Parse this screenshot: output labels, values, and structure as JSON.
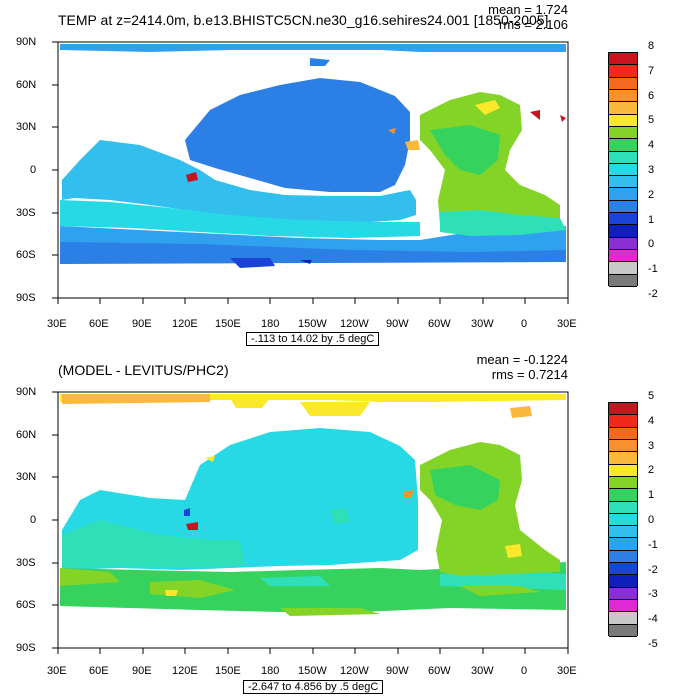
{
  "panels": [
    {
      "title": "TEMP at z=2414.0m, b.e13.BHISTC5CN.ne30_g16.sehires24.001 [1850-2005]",
      "mean_text": "mean = 1.724",
      "rms_text": "rms = 2.106",
      "range_text": "-.113 to 14.02 by .5 degC",
      "colorbar_labels": [
        "8",
        "7",
        "6",
        "5",
        "4",
        "3",
        "2",
        "1",
        "0",
        "-1",
        "-2"
      ],
      "colorbar_colors": [
        "#c8141e",
        "#ef2a1a",
        "#f36a1f",
        "#f89030",
        "#fab83d",
        "#fbe82b",
        "#84d428",
        "#35d35d",
        "#2fdfb7",
        "#27d9e4",
        "#32bfee",
        "#2fa1ef",
        "#2c7fe4",
        "#1c43d8",
        "#0f1fbe",
        "#8a2fd2",
        "#df29d6",
        "#c8c8c8",
        "#7a7a7a"
      ]
    },
    {
      "title": "(MODEL - LEVITUS/PHC2)",
      "mean_text": "mean = -0.1224",
      "rms_text": "rms = 0.7214",
      "range_text": "-2.647 to 4.856 by .5 degC",
      "colorbar_labels": [
        "5",
        "4",
        "3",
        "2",
        "1",
        "0",
        "-1",
        "-2",
        "-3",
        "-4",
        "-5"
      ],
      "colorbar_colors": [
        "#c8141e",
        "#ef2a1a",
        "#f36a1f",
        "#f89030",
        "#fab83d",
        "#fbe82b",
        "#84d428",
        "#35d35d",
        "#2fdfb7",
        "#27d9e4",
        "#32bfee",
        "#2fa1ef",
        "#2c7fe4",
        "#1c43d8",
        "#0f1fbe",
        "#8a2fd2",
        "#df29d6",
        "#c8c8c8",
        "#7a7a7a"
      ]
    }
  ],
  "lat_labels": [
    "90N",
    "60N",
    "30N",
    "0",
    "30S",
    "60S",
    "90S"
  ],
  "lon_labels": [
    "30E",
    "60E",
    "90E",
    "120E",
    "150E",
    "180",
    "150W",
    "120W",
    "90W",
    "60W",
    "30W",
    "0",
    "30E"
  ]
}
